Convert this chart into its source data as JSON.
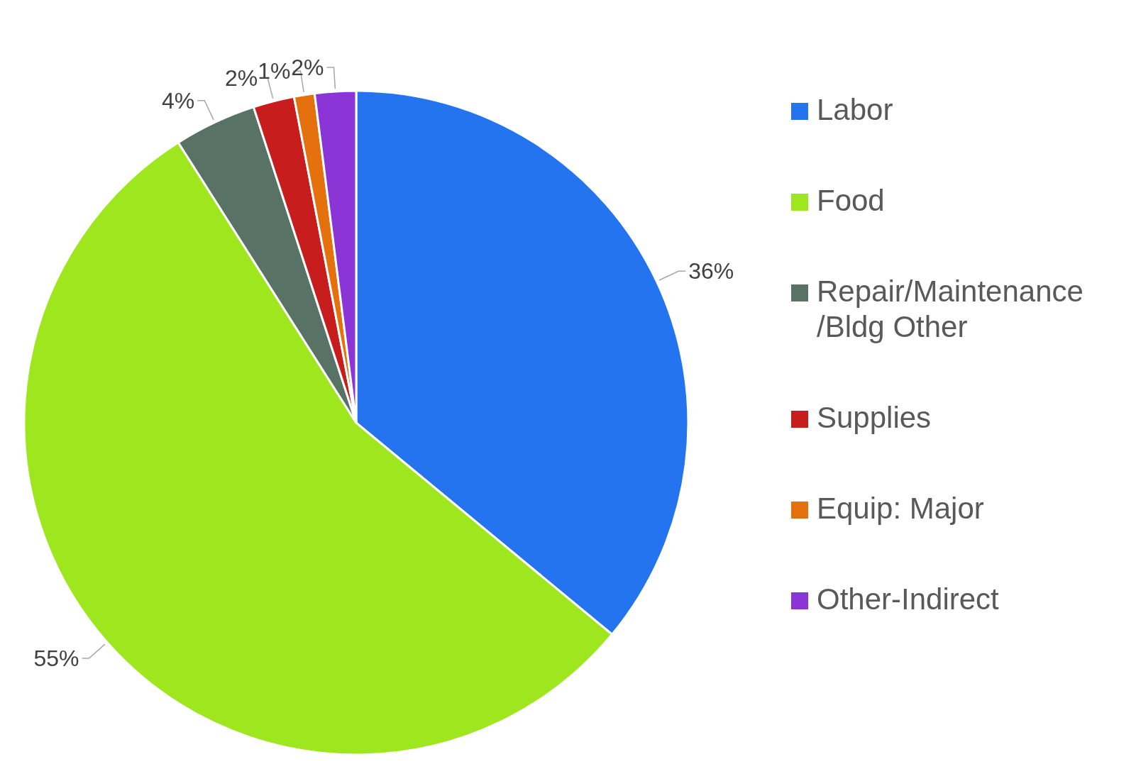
{
  "chart_data": {
    "type": "pie",
    "categories": [
      "Labor",
      "Food",
      "Repair/Maintenance /Bldg Other",
      "Supplies",
      "Equip: Major",
      "Other-Indirect"
    ],
    "values": [
      36,
      55,
      4,
      2,
      1,
      2
    ],
    "value_labels": [
      "36%",
      "55%",
      "4%",
      "2%",
      "1%",
      "2%"
    ],
    "colors": [
      "#2473ef",
      "#9ee61e",
      "#587265",
      "#c81d1d",
      "#e5700e",
      "#8b35d6"
    ],
    "legend": "right"
  }
}
